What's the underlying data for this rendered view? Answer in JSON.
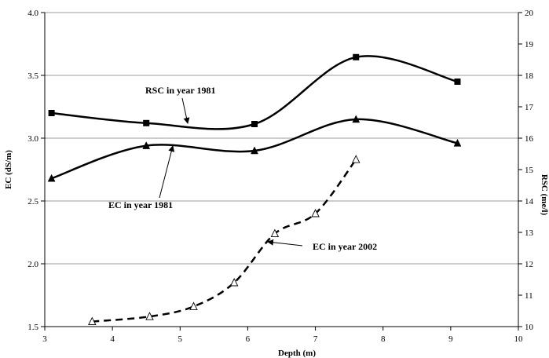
{
  "chart_data": {
    "type": "line",
    "xlabel": "Depth (m)",
    "ylabel": "EC (dS/m)",
    "y2label": "RSC (me/l)",
    "xlim": [
      3,
      10
    ],
    "ylim": [
      1.5,
      4.0
    ],
    "y2lim": [
      10,
      20
    ],
    "xticks": [
      "3",
      "4",
      "5",
      "6",
      "7",
      "8",
      "9",
      "10"
    ],
    "yticks": [
      "1.5",
      "2.0",
      "2.5",
      "3.0",
      "3.5",
      "4.0"
    ],
    "y2ticks": [
      "10",
      "11",
      "12",
      "13",
      "14",
      "15",
      "16",
      "17",
      "18",
      "19",
      "20"
    ],
    "grid": true,
    "series": [
      {
        "name": "RSC in year 1981",
        "axis": "right",
        "marker": "square",
        "line_style": "solid",
        "color": "#000000",
        "x": [
          3.1,
          4.5,
          6.1,
          7.6,
          9.1
        ],
        "y": [
          16.8,
          16.48,
          16.45,
          18.58,
          17.8
        ]
      },
      {
        "name": "EC in year 1981",
        "axis": "left",
        "marker": "triangle-filled",
        "line_style": "solid",
        "color": "#000000",
        "x": [
          3.1,
          4.5,
          6.1,
          7.6,
          9.1
        ],
        "y": [
          2.68,
          2.94,
          2.9,
          3.15,
          2.96
        ]
      },
      {
        "name": "EC in year 2002",
        "axis": "left",
        "marker": "triangle-open",
        "line_style": "dashed",
        "color": "#000000",
        "x": [
          3.7,
          4.55,
          5.2,
          5.8,
          6.4,
          7.0,
          7.6
        ],
        "y": [
          1.54,
          1.58,
          1.66,
          1.85,
          2.24,
          2.4,
          2.83
        ]
      }
    ],
    "annotations": [
      {
        "text": "RSC in year 1981"
      },
      {
        "text": "EC in year 1981"
      },
      {
        "text": "EC in year 2002"
      }
    ]
  }
}
